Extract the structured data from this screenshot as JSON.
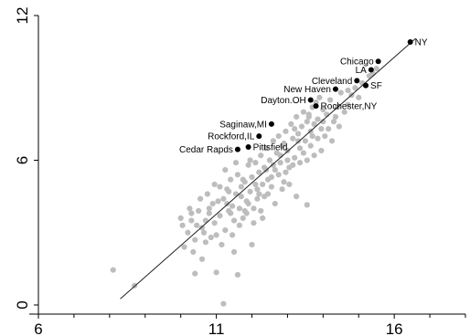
{
  "chart_data": {
    "type": "scatter",
    "title": "",
    "xlabel": "",
    "ylabel": "",
    "xlim": [
      6,
      18
    ],
    "ylim": [
      0,
      12
    ],
    "x_ticks": [
      6,
      11,
      16
    ],
    "x_minor_ticks": [
      7,
      8,
      9,
      10,
      12,
      13,
      14,
      15,
      17,
      18
    ],
    "y_ticks": [
      0,
      6,
      12
    ],
    "grid": false,
    "fit_line": {
      "x": [
        8.3,
        16.6
      ],
      "y": [
        0.25,
        11.05
      ]
    },
    "labeled_points": [
      {
        "x": 16.45,
        "y": 10.9,
        "label": "NY",
        "label_side": "right"
      },
      {
        "x": 15.55,
        "y": 10.1,
        "label": "Chicago",
        "label_side": "left"
      },
      {
        "x": 15.35,
        "y": 9.75,
        "label": "LA",
        "label_side": "left"
      },
      {
        "x": 14.95,
        "y": 9.3,
        "label": "Cleveland",
        "label_side": "left"
      },
      {
        "x": 15.2,
        "y": 9.1,
        "label": "SF",
        "label_side": "right"
      },
      {
        "x": 14.35,
        "y": 8.95,
        "label": "New Haven",
        "label_side": "left"
      },
      {
        "x": 13.65,
        "y": 8.5,
        "label": "Dayton.OH",
        "label_side": "left"
      },
      {
        "x": 13.8,
        "y": 8.25,
        "label": "Rochester,NY",
        "label_side": "right"
      },
      {
        "x": 12.55,
        "y": 7.5,
        "label": "Saginaw,MI",
        "label_side": "left"
      },
      {
        "x": 12.2,
        "y": 7.0,
        "label": "Rockford,IL",
        "label_side": "left"
      },
      {
        "x": 11.9,
        "y": 6.55,
        "label": "Pittsfield",
        "label_side": "right"
      },
      {
        "x": 11.6,
        "y": 6.45,
        "label": "Cedar Rapds",
        "label_side": "left"
      }
    ],
    "points": [
      [
        8.1,
        1.45
      ],
      [
        8.7,
        0.8
      ],
      [
        10.4,
        1.3
      ],
      [
        11.0,
        1.35
      ],
      [
        11.6,
        1.25
      ],
      [
        11.2,
        0.05
      ],
      [
        10.05,
        3.3
      ],
      [
        10.2,
        3.0
      ],
      [
        10.3,
        3.5
      ],
      [
        10.4,
        2.7
      ],
      [
        10.5,
        3.9
      ],
      [
        10.6,
        3.2
      ],
      [
        10.7,
        2.6
      ],
      [
        10.8,
        3.8
      ],
      [
        10.9,
        4.2
      ],
      [
        10.95,
        3.4
      ],
      [
        11.0,
        2.9
      ],
      [
        11.1,
        3.7
      ],
      [
        11.2,
        4.4
      ],
      [
        11.25,
        3.1
      ],
      [
        11.3,
        4.8
      ],
      [
        11.35,
        3.9
      ],
      [
        11.4,
        5.2
      ],
      [
        11.45,
        4.1
      ],
      [
        11.5,
        3.5
      ],
      [
        11.55,
        4.6
      ],
      [
        11.6,
        5.4
      ],
      [
        11.65,
        4.0
      ],
      [
        11.7,
        4.9
      ],
      [
        11.75,
        3.6
      ],
      [
        11.8,
        5.1
      ],
      [
        11.85,
        4.3
      ],
      [
        11.9,
        5.8
      ],
      [
        11.95,
        4.7
      ],
      [
        12.0,
        5.3
      ],
      [
        12.05,
        4.0
      ],
      [
        12.1,
        5.9
      ],
      [
        12.15,
        4.8
      ],
      [
        12.2,
        5.5
      ],
      [
        12.25,
        6.2
      ],
      [
        12.3,
        5.0
      ],
      [
        12.35,
        5.7
      ],
      [
        12.4,
        6.5
      ],
      [
        12.45,
        4.6
      ],
      [
        12.5,
        6.0
      ],
      [
        12.55,
        5.3
      ],
      [
        12.6,
        6.8
      ],
      [
        12.65,
        5.6
      ],
      [
        12.7,
        6.3
      ],
      [
        12.75,
        7.0
      ],
      [
        12.8,
        5.9
      ],
      [
        12.85,
        6.6
      ],
      [
        12.9,
        5.1
      ],
      [
        12.95,
        7.2
      ],
      [
        13.0,
        6.4
      ],
      [
        13.05,
        5.7
      ],
      [
        13.1,
        7.5
      ],
      [
        13.15,
        6.9
      ],
      [
        13.2,
        6.1
      ],
      [
        13.25,
        7.8
      ],
      [
        13.3,
        7.1
      ],
      [
        13.35,
        6.5
      ],
      [
        13.4,
        7.4
      ],
      [
        13.45,
        8.0
      ],
      [
        13.5,
        6.8
      ],
      [
        13.55,
        7.6
      ],
      [
        13.6,
        7.9
      ],
      [
        13.65,
        7.2
      ],
      [
        13.7,
        8.2
      ],
      [
        13.75,
        7.5
      ],
      [
        13.8,
        8.4
      ],
      [
        13.85,
        7.7
      ],
      [
        13.9,
        8.6
      ],
      [
        13.95,
        7.3
      ],
      [
        14.0,
        8.1
      ],
      [
        14.1,
        7.9
      ],
      [
        14.2,
        8.5
      ],
      [
        14.3,
        7.6
      ],
      [
        14.5,
        8.8
      ],
      [
        14.7,
        8.3
      ],
      [
        14.9,
        9.0
      ],
      [
        15.1,
        9.2
      ],
      [
        15.3,
        9.5
      ],
      [
        15.5,
        9.8
      ],
      [
        10.0,
        3.6
      ],
      [
        10.1,
        2.4
      ],
      [
        10.25,
        4.0
      ],
      [
        10.35,
        2.2
      ],
      [
        10.45,
        3.3
      ],
      [
        10.55,
        4.4
      ],
      [
        10.65,
        3.0
      ],
      [
        10.75,
        4.6
      ],
      [
        10.85,
        2.8
      ],
      [
        10.95,
        5.0
      ],
      [
        11.05,
        4.3
      ],
      [
        11.15,
        2.5
      ],
      [
        11.25,
        5.6
      ],
      [
        11.35,
        4.7
      ],
      [
        11.45,
        2.9
      ],
      [
        11.55,
        5.9
      ],
      [
        11.65,
        3.3
      ],
      [
        11.75,
        5.2
      ],
      [
        11.85,
        3.8
      ],
      [
        11.95,
        6.0
      ],
      [
        12.05,
        3.4
      ],
      [
        12.15,
        4.4
      ],
      [
        12.25,
        3.9
      ],
      [
        12.35,
        4.5
      ],
      [
        12.45,
        5.2
      ],
      [
        12.55,
        4.9
      ],
      [
        12.65,
        4.2
      ],
      [
        12.75,
        5.4
      ],
      [
        12.85,
        4.8
      ],
      [
        12.95,
        5.5
      ],
      [
        13.05,
        5.0
      ],
      [
        13.15,
        5.8
      ],
      [
        13.25,
        4.5
      ],
      [
        13.35,
        5.9
      ],
      [
        13.45,
        6.3
      ],
      [
        13.55,
        6.0
      ],
      [
        13.65,
        6.6
      ],
      [
        13.75,
        6.2
      ],
      [
        13.85,
        6.9
      ],
      [
        13.95,
        6.4
      ],
      [
        14.05,
        7.0
      ],
      [
        14.15,
        7.3
      ],
      [
        14.25,
        6.8
      ],
      [
        14.35,
        7.8
      ],
      [
        14.45,
        7.4
      ],
      [
        14.6,
        8.0
      ],
      [
        14.8,
        8.7
      ],
      [
        15.0,
        8.6
      ],
      [
        13.55,
        4.15
      ],
      [
        12.0,
        2.5
      ],
      [
        11.5,
        2.2
      ],
      [
        10.6,
        1.9
      ],
      [
        12.3,
        3.6
      ],
      [
        11.1,
        4.9
      ],
      [
        10.8,
        4.0
      ],
      [
        11.7,
        4.5
      ],
      [
        12.1,
        5.0
      ],
      [
        12.6,
        5.8
      ],
      [
        13.0,
        6.0
      ],
      [
        11.4,
        3.8
      ],
      [
        11.9,
        4.2
      ],
      [
        12.2,
        4.6
      ],
      [
        12.8,
        6.2
      ],
      [
        13.3,
        6.8
      ],
      [
        13.7,
        7.0
      ],
      [
        14.0,
        7.6
      ],
      [
        10.3,
        3.8
      ],
      [
        10.7,
        3.5
      ],
      [
        11.3,
        4.2
      ],
      [
        11.8,
        3.9
      ],
      [
        12.4,
        5.6
      ],
      [
        12.9,
        6.7
      ],
      [
        13.2,
        7.3
      ],
      [
        13.6,
        7.8
      ],
      [
        14.4,
        8.2
      ],
      [
        14.7,
        8.9
      ],
      [
        15.2,
        9.1
      ],
      [
        15.4,
        9.6
      ]
    ]
  }
}
